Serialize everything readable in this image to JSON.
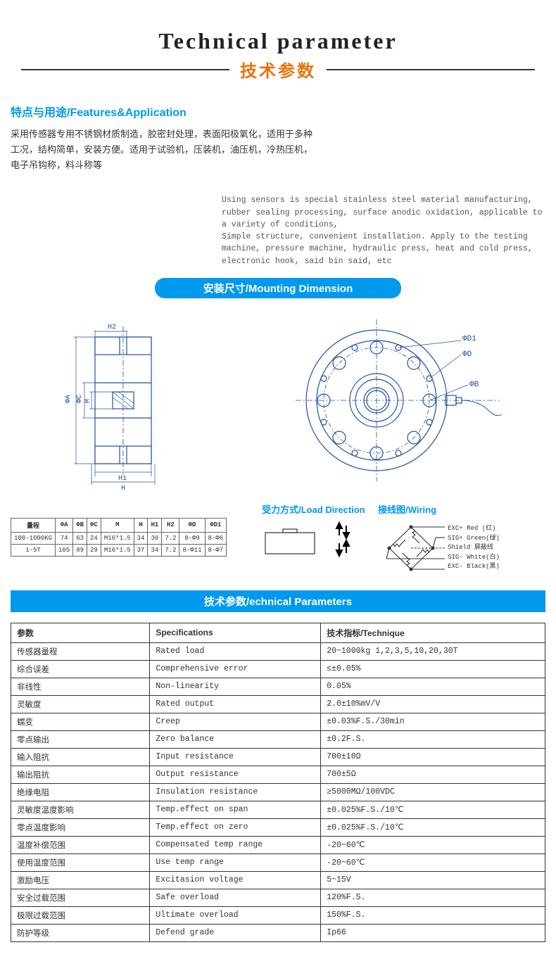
{
  "header": {
    "title_en": "Technical parameter",
    "title_zh": "技术参数"
  },
  "features": {
    "heading": "特点与用途/Features&Application",
    "desc_zh": "采用传感器专用不锈钢材质制造，胶密封处理，表面阳极氧化，适用于多种工况，结构简单，安装方便。适用于试验机，压装机，油压机，冷热压机，电子吊钩称，料斗称等",
    "desc_en_1": "Using sensors is special stainless steel material manufacturing, rubber sealing processing, surface anodic oxidation, applicable to a variety of conditions,",
    "desc_en_2": "Simple structure, convenient installation. Apply to the testing machine, pressure machine, hydraulic press, heat and cold press, electronic hook, said bin said, etc"
  },
  "mounting": {
    "heading": "安装尺寸/Mounting Dimension",
    "side_labels": {
      "H2": "H2",
      "H1": "H1",
      "H": "H",
      "phiA": "ΦA",
      "phiC": "ΦC",
      "M": "M"
    },
    "front_labels": {
      "phiD1": "ΦD1",
      "phiD": "ΦD",
      "phiB": "ΦB"
    }
  },
  "dim_table": {
    "headers": [
      "量程",
      "ΦA",
      "ΦB",
      "ΦC",
      "M",
      "H",
      "H1",
      "H2",
      "ΦD",
      "ΦD1"
    ],
    "rows": [
      [
        "100-1000KG",
        "74",
        "63",
        "24",
        "M16*1.5",
        "34",
        "30",
        "7.2",
        "8-Φ9",
        "8-Φ6"
      ],
      [
        "1-5T",
        "105",
        "89",
        "29",
        "M16*1.5",
        "37",
        "34",
        "7.2",
        "8-Φ11",
        "8-Φ7"
      ]
    ]
  },
  "load_direction": {
    "heading": "受力方式/Load Direction"
  },
  "wiring": {
    "heading": "接线图/Wiring",
    "lines": [
      "EXC+ Red  (红)",
      "SIG+ Green(绿)",
      "Shield 屏蔽线",
      "SIG- White(白)",
      "EXC- Black(黑)"
    ]
  },
  "tech_params": {
    "heading": "技术参数/echnical Parameters",
    "headers": [
      "参数",
      "Specifications",
      "技术指标/Technique"
    ],
    "rows": [
      [
        "传感器量程",
        "Rated load",
        "20~1000kg 1,2,3,5,10,20,30T"
      ],
      [
        "综合误差",
        "Comprehensive error",
        "≤±0.05%"
      ],
      [
        "非线性",
        "Non-linearity",
        "0.05%"
      ],
      [
        "灵敏度",
        "Rated output",
        "2.0±10%mV/V"
      ],
      [
        "蠕变",
        "Creep",
        "±0.03%F.S./30min"
      ],
      [
        "零点输出",
        "Zero balance",
        "±0.2F.S."
      ],
      [
        "输入阻抗",
        "Input resistance",
        "700±10Ω"
      ],
      [
        "输出阻抗",
        "Output resistance",
        "700±5Ω"
      ],
      [
        "绝缘电阻",
        "Insulation resistance",
        "≥5000MΩ/100VDC"
      ],
      [
        "灵敏度温度影响",
        "Temp.effect on span",
        "±0.025%F.S./10℃"
      ],
      [
        "零点温度影响",
        "Temp.effect on zero",
        "±0.025%F.S./10℃"
      ],
      [
        "温度补偿范围",
        "Compensated temp range",
        "-20~60℃"
      ],
      [
        "使用温度范围",
        "Use temp range",
        "-20~60℃"
      ],
      [
        "激励电压",
        "Excitasion voltage",
        "5~15V"
      ],
      [
        "安全过载范围",
        "Safe overload",
        "120%F.S."
      ],
      [
        "极限过载范围",
        "Ultimate overload",
        "150%F.S."
      ],
      [
        "防护等级",
        "Defend grade",
        "Ip66"
      ]
    ]
  },
  "colors": {
    "blue": "#0099ee",
    "orange": "#e8740c",
    "diagram_stroke": "#2050a0",
    "border": "#333333"
  }
}
